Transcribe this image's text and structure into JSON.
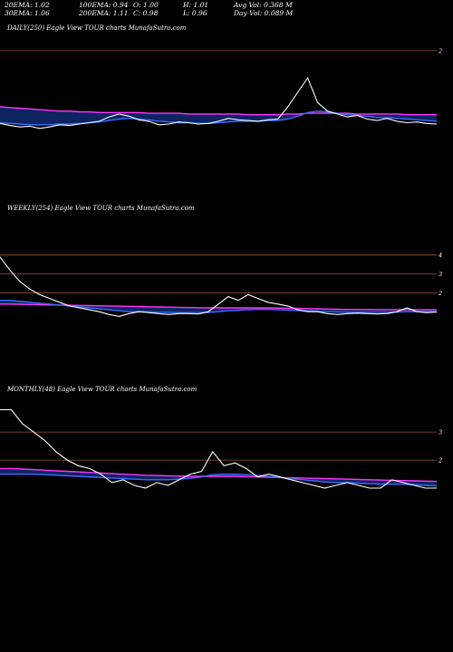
{
  "header": {
    "row1": [
      "20EMA: 1.02",
      "100EMA: 0.94",
      "O: 1.00",
      "H: 1.01",
      "Avg Vol: 0.368 M"
    ],
    "row2": [
      "30EMA: 1.06",
      "200EMA: 1.11",
      "C: 0.98",
      "L: 0.96",
      "Day Vol: 0.089 M"
    ]
  },
  "colors": {
    "background": "#000000",
    "price_line": "#ffffff",
    "ema_blue": "#3b6cff",
    "ema_magenta": "#ff33ff",
    "level_brown": "#a0522d",
    "band_fill": "#1e4fd8"
  },
  "chart_data": [
    {
      "type": "line",
      "label": "DAILY(250) Eagle View TOUR charts MunafaSutra.com",
      "ylim": [
        0,
        2.2
      ],
      "levels": [
        {
          "label": "2",
          "value": 2
        }
      ],
      "series": [
        {
          "role": "price",
          "values": [
            0.99,
            0.96,
            0.94,
            0.95,
            0.92,
            0.94,
            0.97,
            0.96,
            0.98,
            1.0,
            1.02,
            1.08,
            1.12,
            1.09,
            1.04,
            1.02,
            0.97,
            0.98,
            1.01,
            1.0,
            0.98,
            0.99,
            1.02,
            1.06,
            1.04,
            1.03,
            1.02,
            1.04,
            1.05,
            1.22,
            1.42,
            1.62,
            1.28,
            1.16,
            1.12,
            1.08,
            1.1,
            1.05,
            1.03,
            1.06,
            1.02,
            1.0,
            1.01,
            0.99,
            0.98
          ]
        },
        {
          "role": "ema-blue",
          "values": [
            1.0,
            0.99,
            0.98,
            0.97,
            0.97,
            0.97,
            0.98,
            0.98,
            0.99,
            1.0,
            1.01,
            1.03,
            1.05,
            1.06,
            1.05,
            1.04,
            1.02,
            1.01,
            1.0,
            1.0,
            0.99,
            0.99,
            1.0,
            1.01,
            1.02,
            1.02,
            1.02,
            1.03,
            1.03,
            1.05,
            1.09,
            1.14,
            1.16,
            1.15,
            1.13,
            1.11,
            1.1,
            1.09,
            1.07,
            1.07,
            1.06,
            1.05,
            1.04,
            1.03,
            1.02
          ]
        },
        {
          "role": "ema-magenta",
          "values": [
            1.22,
            1.21,
            1.2,
            1.19,
            1.18,
            1.17,
            1.16,
            1.16,
            1.15,
            1.15,
            1.14,
            1.14,
            1.14,
            1.14,
            1.14,
            1.13,
            1.13,
            1.13,
            1.13,
            1.12,
            1.12,
            1.12,
            1.12,
            1.12,
            1.12,
            1.11,
            1.11,
            1.11,
            1.11,
            1.12,
            1.12,
            1.13,
            1.13,
            1.13,
            1.13,
            1.13,
            1.12,
            1.12,
            1.12,
            1.12,
            1.12,
            1.11,
            1.11,
            1.11,
            1.11
          ]
        }
      ]
    },
    {
      "type": "line",
      "label": "WEEKLY(254) Eagle View TOUR charts MunafaSutra.com",
      "ylim": [
        0,
        6
      ],
      "levels": [
        {
          "label": "4",
          "value": 4
        },
        {
          "label": "3",
          "value": 3
        },
        {
          "label": "2",
          "value": 2
        }
      ],
      "series": [
        {
          "role": "price",
          "values": [
            3.9,
            3.2,
            2.6,
            2.2,
            1.9,
            1.7,
            1.5,
            1.3,
            1.2,
            1.1,
            1.0,
            0.85,
            0.75,
            0.9,
            1.0,
            0.95,
            0.9,
            0.85,
            0.9,
            0.9,
            0.88,
            1.0,
            1.4,
            1.8,
            1.6,
            1.9,
            1.7,
            1.5,
            1.4,
            1.3,
            1.1,
            1.0,
            1.0,
            0.9,
            0.85,
            0.9,
            0.92,
            0.9,
            0.88,
            0.9,
            1.0,
            1.2,
            1.0,
            0.95,
            0.98
          ]
        },
        {
          "role": "ema-blue",
          "values": [
            1.6,
            1.6,
            1.55,
            1.5,
            1.45,
            1.4,
            1.35,
            1.3,
            1.25,
            1.2,
            1.15,
            1.1,
            1.05,
            1.0,
            1.0,
            0.98,
            0.97,
            0.96,
            0.95,
            0.95,
            0.95,
            0.96,
            1.0,
            1.05,
            1.08,
            1.1,
            1.12,
            1.12,
            1.1,
            1.08,
            1.06,
            1.04,
            1.02,
            1.0,
            0.98,
            0.97,
            0.97,
            0.97,
            0.97,
            0.97,
            0.98,
            1.0,
            1.0,
            1.0,
            1.0
          ]
        },
        {
          "role": "ema-magenta",
          "values": [
            1.4,
            1.4,
            1.39,
            1.38,
            1.37,
            1.36,
            1.35,
            1.34,
            1.33,
            1.32,
            1.31,
            1.3,
            1.29,
            1.28,
            1.27,
            1.26,
            1.25,
            1.24,
            1.23,
            1.22,
            1.21,
            1.2,
            1.2,
            1.2,
            1.2,
            1.2,
            1.2,
            1.2,
            1.19,
            1.18,
            1.17,
            1.16,
            1.15,
            1.14,
            1.13,
            1.12,
            1.12,
            1.12,
            1.11,
            1.11,
            1.11,
            1.11,
            1.11,
            1.11,
            1.11
          ]
        }
      ]
    },
    {
      "type": "line",
      "label": "MONTHLY(48) Eagle View TOUR charts MunafaSutra.com",
      "ylim": [
        0,
        4.2
      ],
      "levels": [
        {
          "label": "3",
          "value": 3
        },
        {
          "label": "2",
          "value": 2
        }
      ],
      "series": [
        {
          "role": "price",
          "values": [
            3.8,
            3.8,
            3.3,
            3.0,
            2.7,
            2.3,
            2.0,
            1.8,
            1.7,
            1.5,
            1.2,
            1.3,
            1.1,
            1.0,
            1.2,
            1.1,
            1.3,
            1.5,
            1.6,
            2.3,
            1.8,
            1.9,
            1.7,
            1.4,
            1.5,
            1.4,
            1.3,
            1.2,
            1.1,
            1.0,
            1.1,
            1.2,
            1.1,
            1.0,
            1.0,
            1.3,
            1.2,
            1.1,
            1.0,
            1.0
          ]
        },
        {
          "role": "ema-blue",
          "values": [
            1.5,
            1.5,
            1.5,
            1.5,
            1.48,
            1.46,
            1.44,
            1.42,
            1.4,
            1.38,
            1.36,
            1.34,
            1.32,
            1.3,
            1.3,
            1.3,
            1.32,
            1.35,
            1.4,
            1.48,
            1.5,
            1.5,
            1.48,
            1.45,
            1.42,
            1.38,
            1.34,
            1.3,
            1.26,
            1.22,
            1.2,
            1.2,
            1.18,
            1.16,
            1.14,
            1.14,
            1.14,
            1.12,
            1.1,
            1.08
          ]
        },
        {
          "role": "ema-magenta",
          "values": [
            1.7,
            1.7,
            1.68,
            1.66,
            1.64,
            1.62,
            1.6,
            1.58,
            1.56,
            1.54,
            1.52,
            1.5,
            1.48,
            1.46,
            1.45,
            1.44,
            1.43,
            1.42,
            1.42,
            1.42,
            1.42,
            1.42,
            1.41,
            1.4,
            1.39,
            1.38,
            1.37,
            1.36,
            1.35,
            1.34,
            1.33,
            1.32,
            1.31,
            1.3,
            1.29,
            1.28,
            1.27,
            1.26,
            1.25,
            1.24
          ]
        }
      ]
    }
  ]
}
